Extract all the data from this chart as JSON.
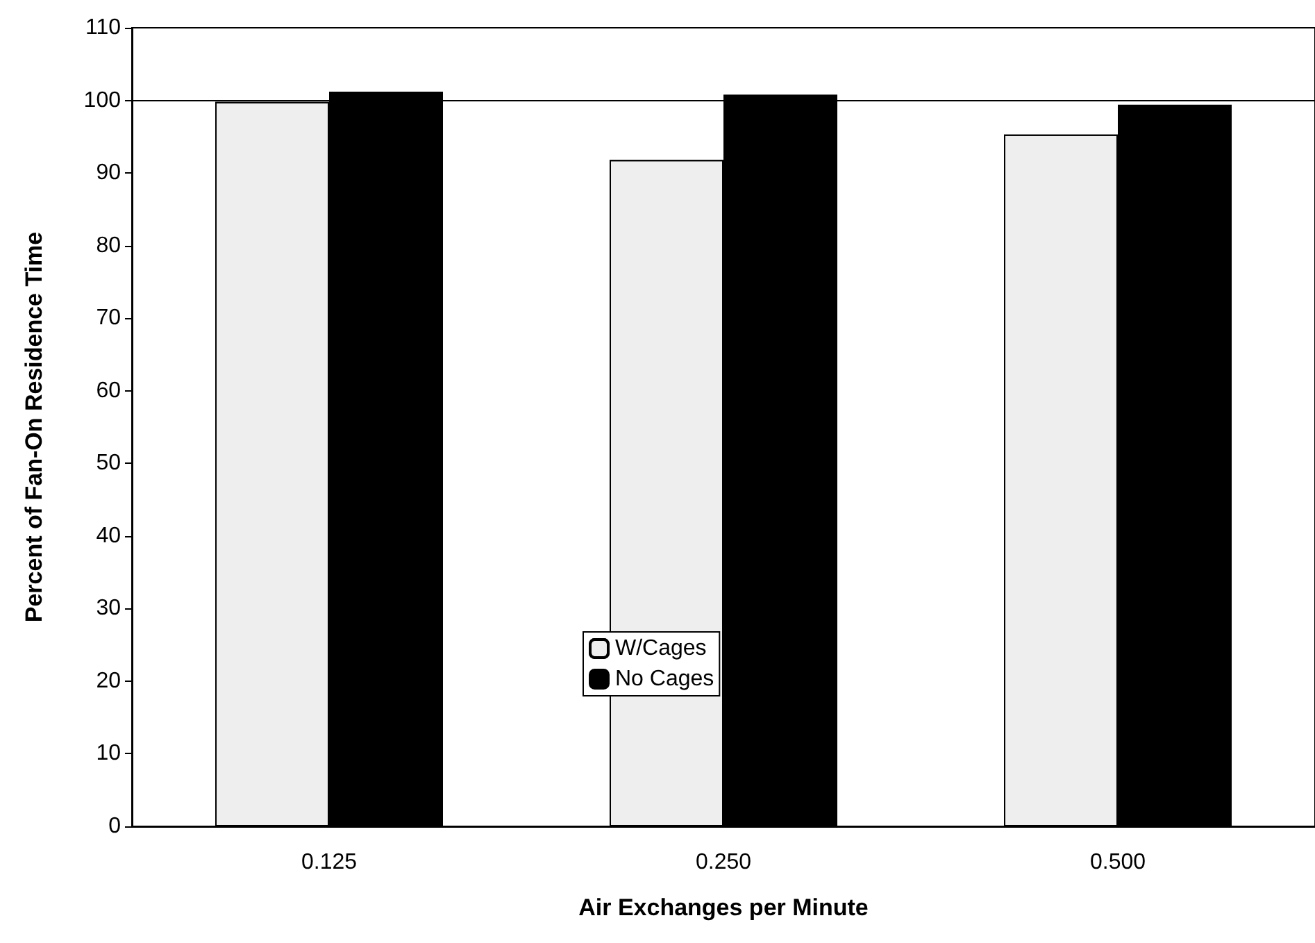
{
  "chart_data": {
    "type": "bar",
    "xlabel": "Air Exchanges per Minute",
    "ylabel": "Percent of Fan-On Residence Time",
    "categories": [
      "0.125",
      "0.250",
      "0.500"
    ],
    "series": [
      {
        "name": "W/Cages",
        "color": "#eeeeee",
        "values": [
          99.8,
          91.8,
          95.3
        ]
      },
      {
        "name": "No Cages",
        "color": "#000000",
        "values": [
          101.2,
          100.8,
          99.4
        ]
      }
    ],
    "ylim": [
      0,
      110
    ],
    "yticks": [
      0,
      10,
      20,
      30,
      40,
      50,
      60,
      70,
      80,
      90,
      100,
      110
    ],
    "grid": false,
    "legend": "bottom",
    "ref_lines": [
      {
        "axis": "y",
        "value": 100,
        "color": "#000000"
      }
    ]
  }
}
